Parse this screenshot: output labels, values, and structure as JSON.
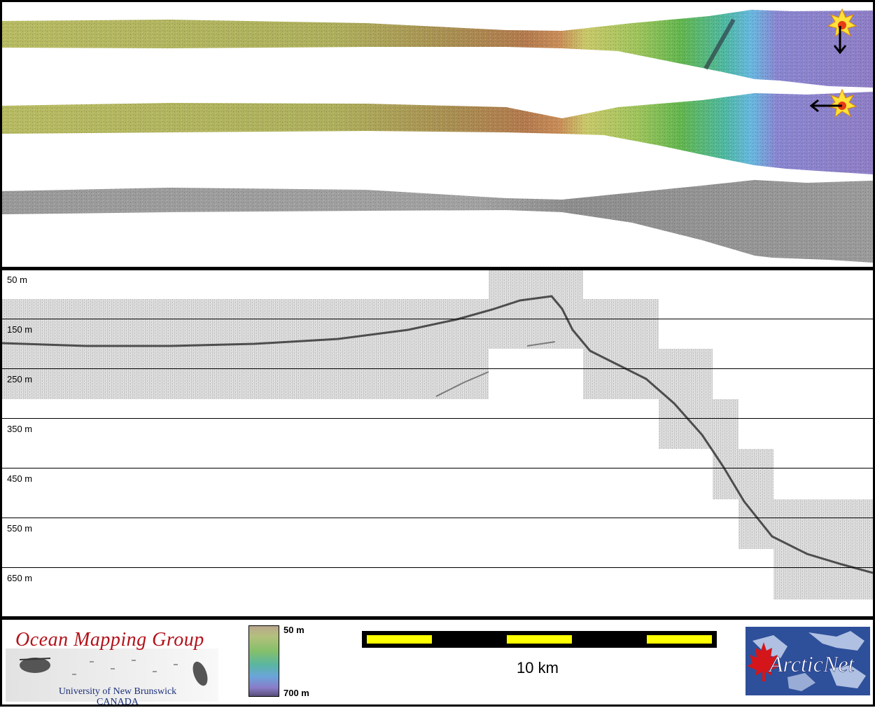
{
  "profile": {
    "depth_labels": [
      "50 m",
      "150 m",
      "250 m",
      "350 m",
      "450 m",
      "550 m",
      "650 m"
    ]
  },
  "legend": {
    "top_label": "50 m",
    "bottom_label": "700 m"
  },
  "scalebar": {
    "label": "10 km"
  },
  "logos": {
    "omg_title": "Ocean Mapping Group",
    "omg_university": "University of New Brunswick",
    "omg_country": "CANADA",
    "arcticnet": "ArcticNet"
  },
  "colors": {
    "frame": "#000000",
    "scalebar_yellow": "#ffff00",
    "omg_red": "#b3121a",
    "omg_blue": "#1b2f7a",
    "arcticnet_blue": "#2e4f9a",
    "maple_red": "#d4161b"
  }
}
